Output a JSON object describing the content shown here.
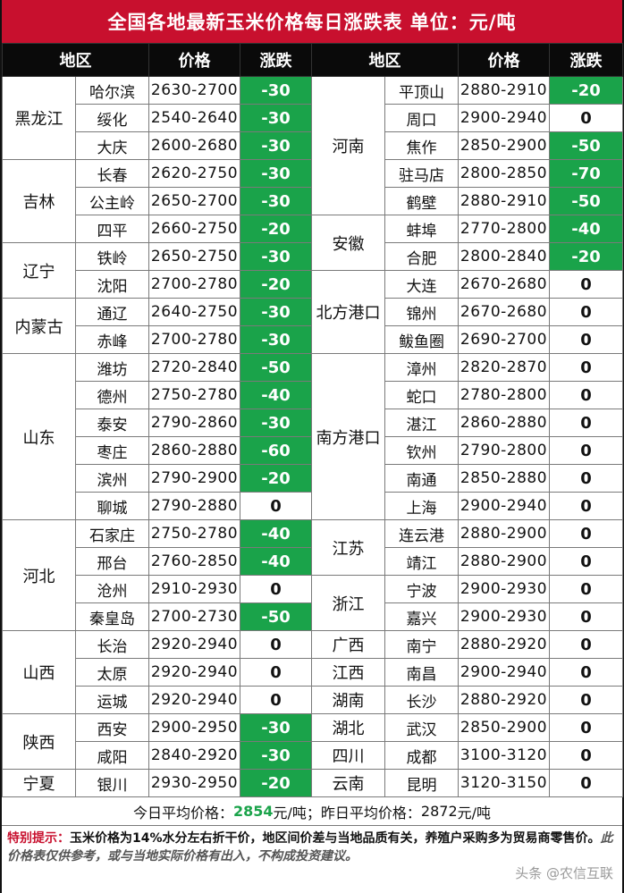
{
  "title": "全国各地最新玉米价格每日涨跌表   单位：元/吨",
  "headers": [
    "地区",
    "价格",
    "涨跌",
    "地区",
    "价格",
    "涨跌"
  ],
  "left": [
    {
      "region": "黑龙江",
      "rows": [
        {
          "city": "哈尔滨",
          "price": "2630-2700",
          "change": "-30"
        },
        {
          "city": "绥化",
          "price": "2540-2640",
          "change": "-30"
        },
        {
          "city": "大庆",
          "price": "2600-2680",
          "change": "-30"
        }
      ]
    },
    {
      "region": "吉林",
      "rows": [
        {
          "city": "长春",
          "price": "2620-2750",
          "change": "-30"
        },
        {
          "city": "公主岭",
          "price": "2650-2700",
          "change": "-30"
        },
        {
          "city": "四平",
          "price": "2660-2750",
          "change": "-20"
        }
      ]
    },
    {
      "region": "辽宁",
      "rows": [
        {
          "city": "铁岭",
          "price": "2650-2750",
          "change": "-30"
        },
        {
          "city": "沈阳",
          "price": "2700-2780",
          "change": "-20"
        }
      ]
    },
    {
      "region": "内蒙古",
      "rows": [
        {
          "city": "通辽",
          "price": "2640-2750",
          "change": "-30"
        },
        {
          "city": "赤峰",
          "price": "2700-2780",
          "change": "-30"
        }
      ]
    },
    {
      "region": "山东",
      "rows": [
        {
          "city": "潍坊",
          "price": "2720-2840",
          "change": "-50"
        },
        {
          "city": "德州",
          "price": "2750-2780",
          "change": "-40"
        },
        {
          "city": "泰安",
          "price": "2790-2860",
          "change": "-30"
        },
        {
          "city": "枣庄",
          "price": "2860-2880",
          "change": "-60"
        },
        {
          "city": "滨州",
          "price": "2790-2900",
          "change": "-20"
        },
        {
          "city": "聊城",
          "price": "2790-2880",
          "change": "0"
        }
      ]
    },
    {
      "region": "河北",
      "rows": [
        {
          "city": "石家庄",
          "price": "2750-2780",
          "change": "-40"
        },
        {
          "city": "邢台",
          "price": "2760-2850",
          "change": "-40"
        },
        {
          "city": "沧州",
          "price": "2910-2930",
          "change": "0"
        },
        {
          "city": "秦皇岛",
          "price": "2700-2730",
          "change": "-50"
        }
      ]
    },
    {
      "region": "山西",
      "rows": [
        {
          "city": "长治",
          "price": "2920-2940",
          "change": "0"
        },
        {
          "city": "太原",
          "price": "2920-2940",
          "change": "0"
        },
        {
          "city": "运城",
          "price": "2920-2940",
          "change": "0"
        }
      ]
    },
    {
      "region": "陕西",
      "rows": [
        {
          "city": "西安",
          "price": "2900-2950",
          "change": "-30"
        },
        {
          "city": "咸阳",
          "price": "2840-2920",
          "change": "-30"
        }
      ]
    },
    {
      "region": "宁夏",
      "rows": [
        {
          "city": "银川",
          "price": "2930-2950",
          "change": "-20"
        }
      ]
    }
  ],
  "right": [
    {
      "region": "河南",
      "rows": [
        {
          "city": "平顶山",
          "price": "2880-2910",
          "change": "-20"
        },
        {
          "city": "周口",
          "price": "2900-2940",
          "change": "0"
        },
        {
          "city": "焦作",
          "price": "2850-2900",
          "change": "-50"
        },
        {
          "city": "驻马店",
          "price": "2800-2850",
          "change": "-70"
        },
        {
          "city": "鹤壁",
          "price": "2880-2910",
          "change": "-50"
        }
      ]
    },
    {
      "region": "安徽",
      "rows": [
        {
          "city": "蚌埠",
          "price": "2770-2800",
          "change": "-40"
        },
        {
          "city": "合肥",
          "price": "2800-2840",
          "change": "-20"
        }
      ]
    },
    {
      "region": "北方港口",
      "rows": [
        {
          "city": "大连",
          "price": "2670-2680",
          "change": "0"
        },
        {
          "city": "锦州",
          "price": "2670-2680",
          "change": "0"
        },
        {
          "city": "鲅鱼圈",
          "price": "2690-2700",
          "change": "0"
        }
      ]
    },
    {
      "region": "南方港口",
      "rows": [
        {
          "city": "漳州",
          "price": "2820-2870",
          "change": "0"
        },
        {
          "city": "蛇口",
          "price": "2780-2800",
          "change": "0"
        },
        {
          "city": "湛江",
          "price": "2860-2880",
          "change": "0"
        },
        {
          "city": "钦州",
          "price": "2790-2800",
          "change": "0"
        },
        {
          "city": "南通",
          "price": "2850-2880",
          "change": "0"
        },
        {
          "city": "上海",
          "price": "2900-2940",
          "change": "0"
        }
      ]
    },
    {
      "region": "江苏",
      "rows": [
        {
          "city": "连云港",
          "price": "2880-2900",
          "change": "0"
        },
        {
          "city": "靖江",
          "price": "2880-2900",
          "change": "0"
        }
      ]
    },
    {
      "region": "浙江",
      "rows": [
        {
          "city": "宁波",
          "price": "2900-2930",
          "change": "0"
        },
        {
          "city": "嘉兴",
          "price": "2900-2930",
          "change": "0"
        }
      ]
    },
    {
      "region": "广西",
      "rows": [
        {
          "city": "南宁",
          "price": "2880-2920",
          "change": "0"
        }
      ]
    },
    {
      "region": "江西",
      "rows": [
        {
          "city": "南昌",
          "price": "2900-2940",
          "change": "0"
        }
      ]
    },
    {
      "region": "湖南",
      "rows": [
        {
          "city": "长沙",
          "price": "2880-2920",
          "change": "0"
        }
      ]
    },
    {
      "region": "湖北",
      "rows": [
        {
          "city": "武汉",
          "price": "2850-2900",
          "change": "0"
        }
      ]
    },
    {
      "region": "四川",
      "rows": [
        {
          "city": "成都",
          "price": "3100-3120",
          "change": "0"
        }
      ]
    },
    {
      "region": "云南",
      "rows": [
        {
          "city": "昆明",
          "price": "3120-3150",
          "change": "0"
        }
      ]
    }
  ],
  "average": {
    "today_label": "今日平均价格：",
    "today_value": "2854",
    "today_unit": "元/吨；",
    "yesterday_label": "昨日平均价格：",
    "yesterday_value": "2872",
    "yesterday_unit": "元/吨"
  },
  "note": {
    "label": "特别提示：",
    "text": "玉米价格为14%水分左右折干价，地区间价差与当地品质有关，养殖户采购多为贸易商零售价。",
    "disclaimer": "此价格表仅供参考，或与当地实际价格有出入，不构成投资建议。"
  },
  "watermark": "头条 @农信互联",
  "colors": {
    "title_bg": "#c8102e",
    "header_bg": "#0a0a0a",
    "negative": "#1aa34a"
  }
}
